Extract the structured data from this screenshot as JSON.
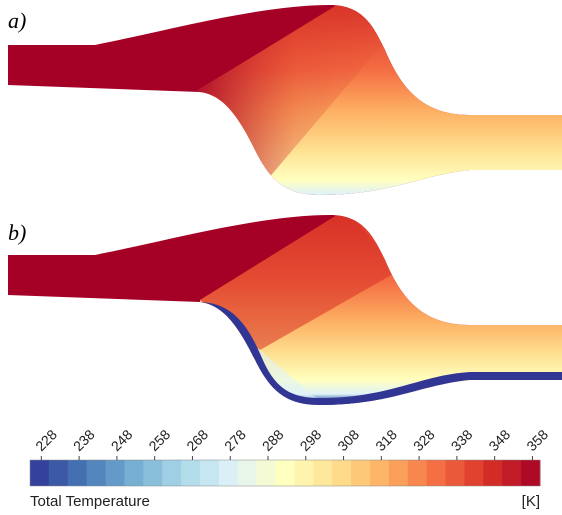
{
  "panels": [
    {
      "label": "a)"
    },
    {
      "label": "b)"
    }
  ],
  "colorbar": {
    "label": "Total Temperature",
    "unit": "[K]",
    "lim": [
      225,
      360
    ],
    "step": 5,
    "ticks": [
      228,
      238,
      248,
      258,
      268,
      278,
      288,
      298,
      308,
      318,
      328,
      338,
      348,
      358
    ],
    "colormap": [
      "#313695",
      "#4575b4",
      "#74add1",
      "#abd9e9",
      "#e0f3f8",
      "#ffffbf",
      "#fee090",
      "#fdae61",
      "#f46d43",
      "#d73027",
      "#a50026"
    ]
  }
}
